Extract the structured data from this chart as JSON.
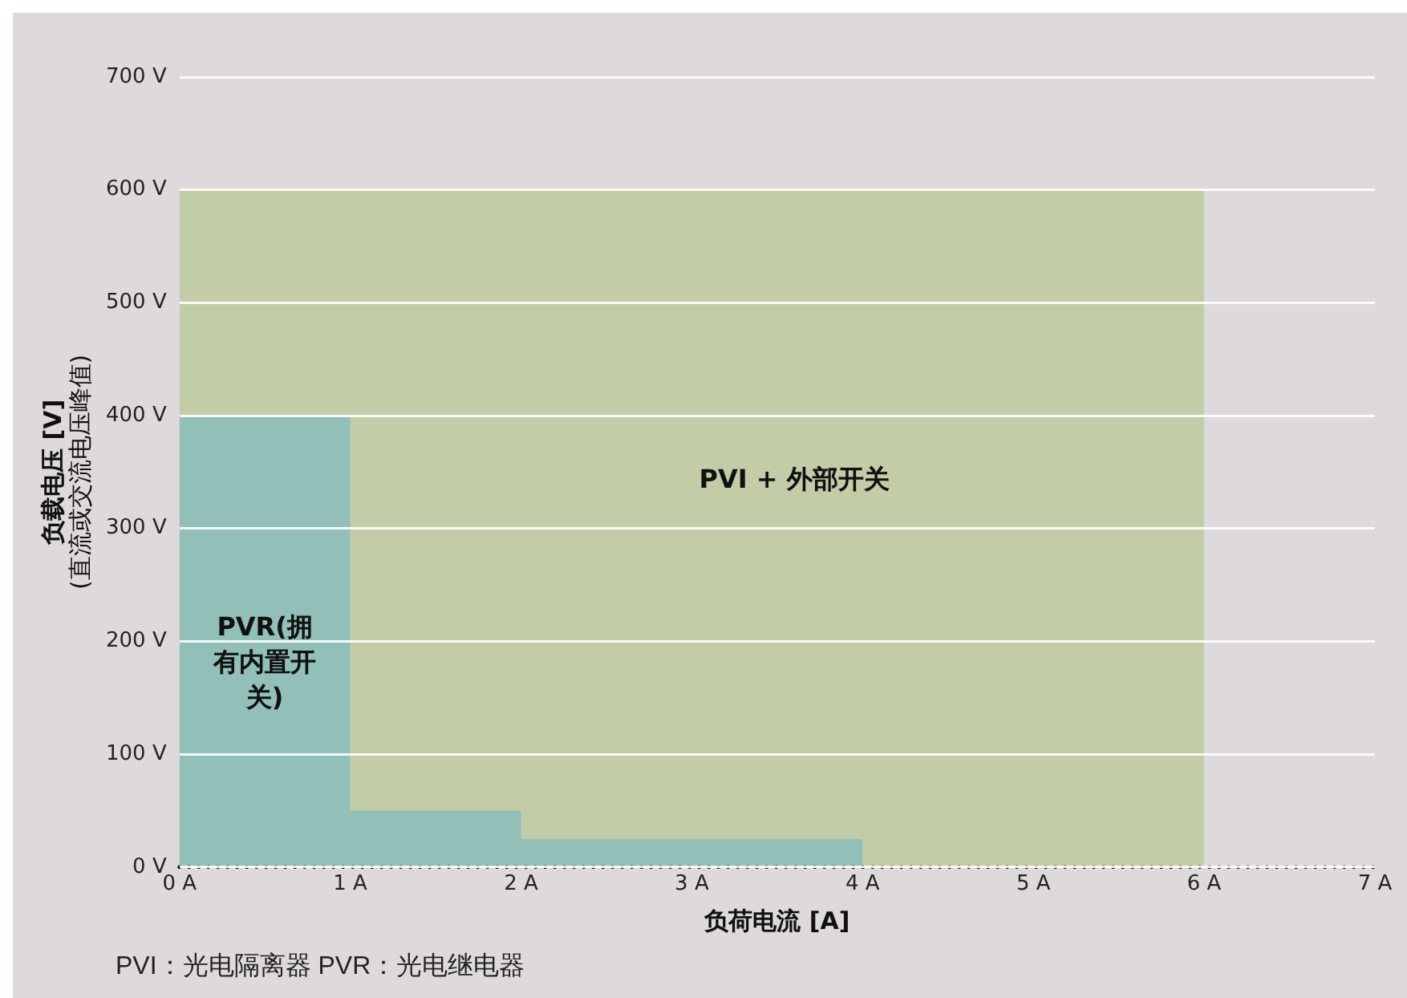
{
  "chart_data": {
    "type": "area",
    "xlabel": "负荷电流 [A]",
    "ylabel": "负载电压 [V]\n(直流或交流电压峰值)",
    "xlim": [
      0,
      7
    ],
    "xticks": [
      {
        "value": 0,
        "label": "0 A"
      },
      {
        "value": 1,
        "label": "1 A"
      },
      {
        "value": 2,
        "label": "2 A"
      },
      {
        "value": 3,
        "label": "3 A"
      },
      {
        "value": 4,
        "label": "4 A"
      },
      {
        "value": 5,
        "label": "5 A"
      },
      {
        "value": 6,
        "label": "6 A"
      },
      {
        "value": 7,
        "label": "7 A"
      }
    ],
    "ylim": [
      0,
      700
    ],
    "yticks": [
      {
        "value": 0,
        "label": "0 V"
      },
      {
        "value": 100,
        "label": "100 V"
      },
      {
        "value": 200,
        "label": "200 V"
      },
      {
        "value": 300,
        "label": "300 V"
      },
      {
        "value": 400,
        "label": "400 V"
      },
      {
        "value": 500,
        "label": "500 V"
      },
      {
        "value": 600,
        "label": "600 V"
      },
      {
        "value": 700,
        "label": "700 V"
      }
    ],
    "grid": "y",
    "legend": false,
    "series": [
      {
        "name": "PVI + 外部开关",
        "color": "#c2cda8",
        "x": [
          0,
          6
        ],
        "values": [
          600,
          600
        ]
      },
      {
        "name": "PVR(拥有内置开关)",
        "color": "#92bfb8",
        "x": [
          0,
          1,
          1,
          2,
          2,
          4
        ],
        "values": [
          400,
          400,
          50,
          50,
          25,
          25
        ]
      }
    ],
    "annotations": [
      "PVI：光电隔离器  PVR：光电继电器"
    ]
  }
}
